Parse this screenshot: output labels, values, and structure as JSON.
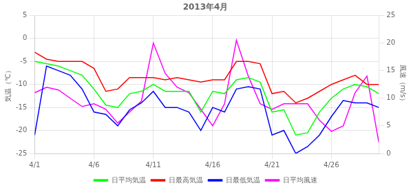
{
  "chart_data": {
    "type": "line",
    "title": "2013年4月",
    "x": [
      1,
      2,
      3,
      4,
      5,
      6,
      7,
      8,
      9,
      10,
      11,
      12,
      13,
      14,
      15,
      16,
      17,
      18,
      19,
      20,
      21,
      22,
      23,
      24,
      25,
      26,
      27,
      28,
      29,
      30
    ],
    "series": [
      {
        "name": "日平均気温",
        "color": "#00ff00",
        "values": [
          -5.0,
          -5.5,
          -6.0,
          -7.0,
          -8.0,
          -11.0,
          -14.5,
          -15.0,
          -12.0,
          -11.5,
          -10.0,
          -11.5,
          -11.5,
          -11.5,
          -16.0,
          -11.5,
          -12.0,
          -9.0,
          -8.5,
          -9.5,
          -16.0,
          -15.5,
          -21.0,
          -20.5,
          -16.0,
          -13.0,
          -11.0,
          -10.0,
          -10.5,
          -12.0
        ]
      },
      {
        "name": "日最高気温",
        "color": "#ff0000",
        "values": [
          -3.0,
          -4.5,
          -5.0,
          -5.0,
          -5.0,
          -6.5,
          -11.5,
          -11.0,
          -8.5,
          -8.5,
          -8.5,
          -9.0,
          -8.5,
          -9.0,
          -9.5,
          -9.0,
          -9.0,
          -5.0,
          -5.0,
          -5.5,
          -12.0,
          -11.5,
          -14.0,
          -13.0,
          -11.5,
          -10.0,
          -9.0,
          -8.0,
          -10.0,
          -10.0
        ]
      },
      {
        "name": "日最低気温",
        "color": "#0000ff",
        "values": [
          -21.0,
          -6.0,
          -7.0,
          -8.0,
          -11.0,
          -16.0,
          -16.5,
          -19.0,
          -15.5,
          -14.0,
          -11.5,
          -15.0,
          -15.0,
          -16.0,
          -20.0,
          -15.0,
          -16.0,
          -11.0,
          -10.5,
          -11.0,
          -21.0,
          -20.0,
          -25.0,
          -23.5,
          -21.0,
          -17.0,
          -13.5,
          -14.0,
          -14.0,
          -15.0
        ]
      },
      {
        "name": "日平均風速",
        "color": "#ff00ff",
        "axis": "y2",
        "values": [
          11.0,
          12.0,
          11.5,
          10.0,
          8.5,
          9.0,
          8.0,
          5.5,
          7.5,
          9.5,
          20.0,
          14.5,
          12.0,
          11.0,
          8.0,
          5.0,
          9.0,
          20.5,
          14.0,
          9.0,
          8.0,
          9.0,
          9.0,
          9.0,
          6.0,
          4.0,
          5.0,
          11.0,
          14.0,
          2.0
        ]
      }
    ],
    "xlim": [
      1,
      30
    ],
    "xticks": [
      {
        "value": 1,
        "label": "4/1"
      },
      {
        "value": 6,
        "label": "4/6"
      },
      {
        "value": 11,
        "label": "4/11"
      },
      {
        "value": 16,
        "label": "4/16"
      },
      {
        "value": 21,
        "label": "4/21"
      },
      {
        "value": 26,
        "label": "4/26"
      }
    ],
    "ylim": [
      -25,
      5
    ],
    "yticks": [
      -25,
      -20,
      -15,
      -10,
      -5,
      0,
      5
    ],
    "y2lim": [
      0,
      25
    ],
    "y2ticks": [
      0,
      5,
      10,
      15,
      20,
      25
    ],
    "ylabel": "気温（℃）",
    "y2label": "風速（m/s）",
    "grid": true,
    "legend": "bottom"
  }
}
